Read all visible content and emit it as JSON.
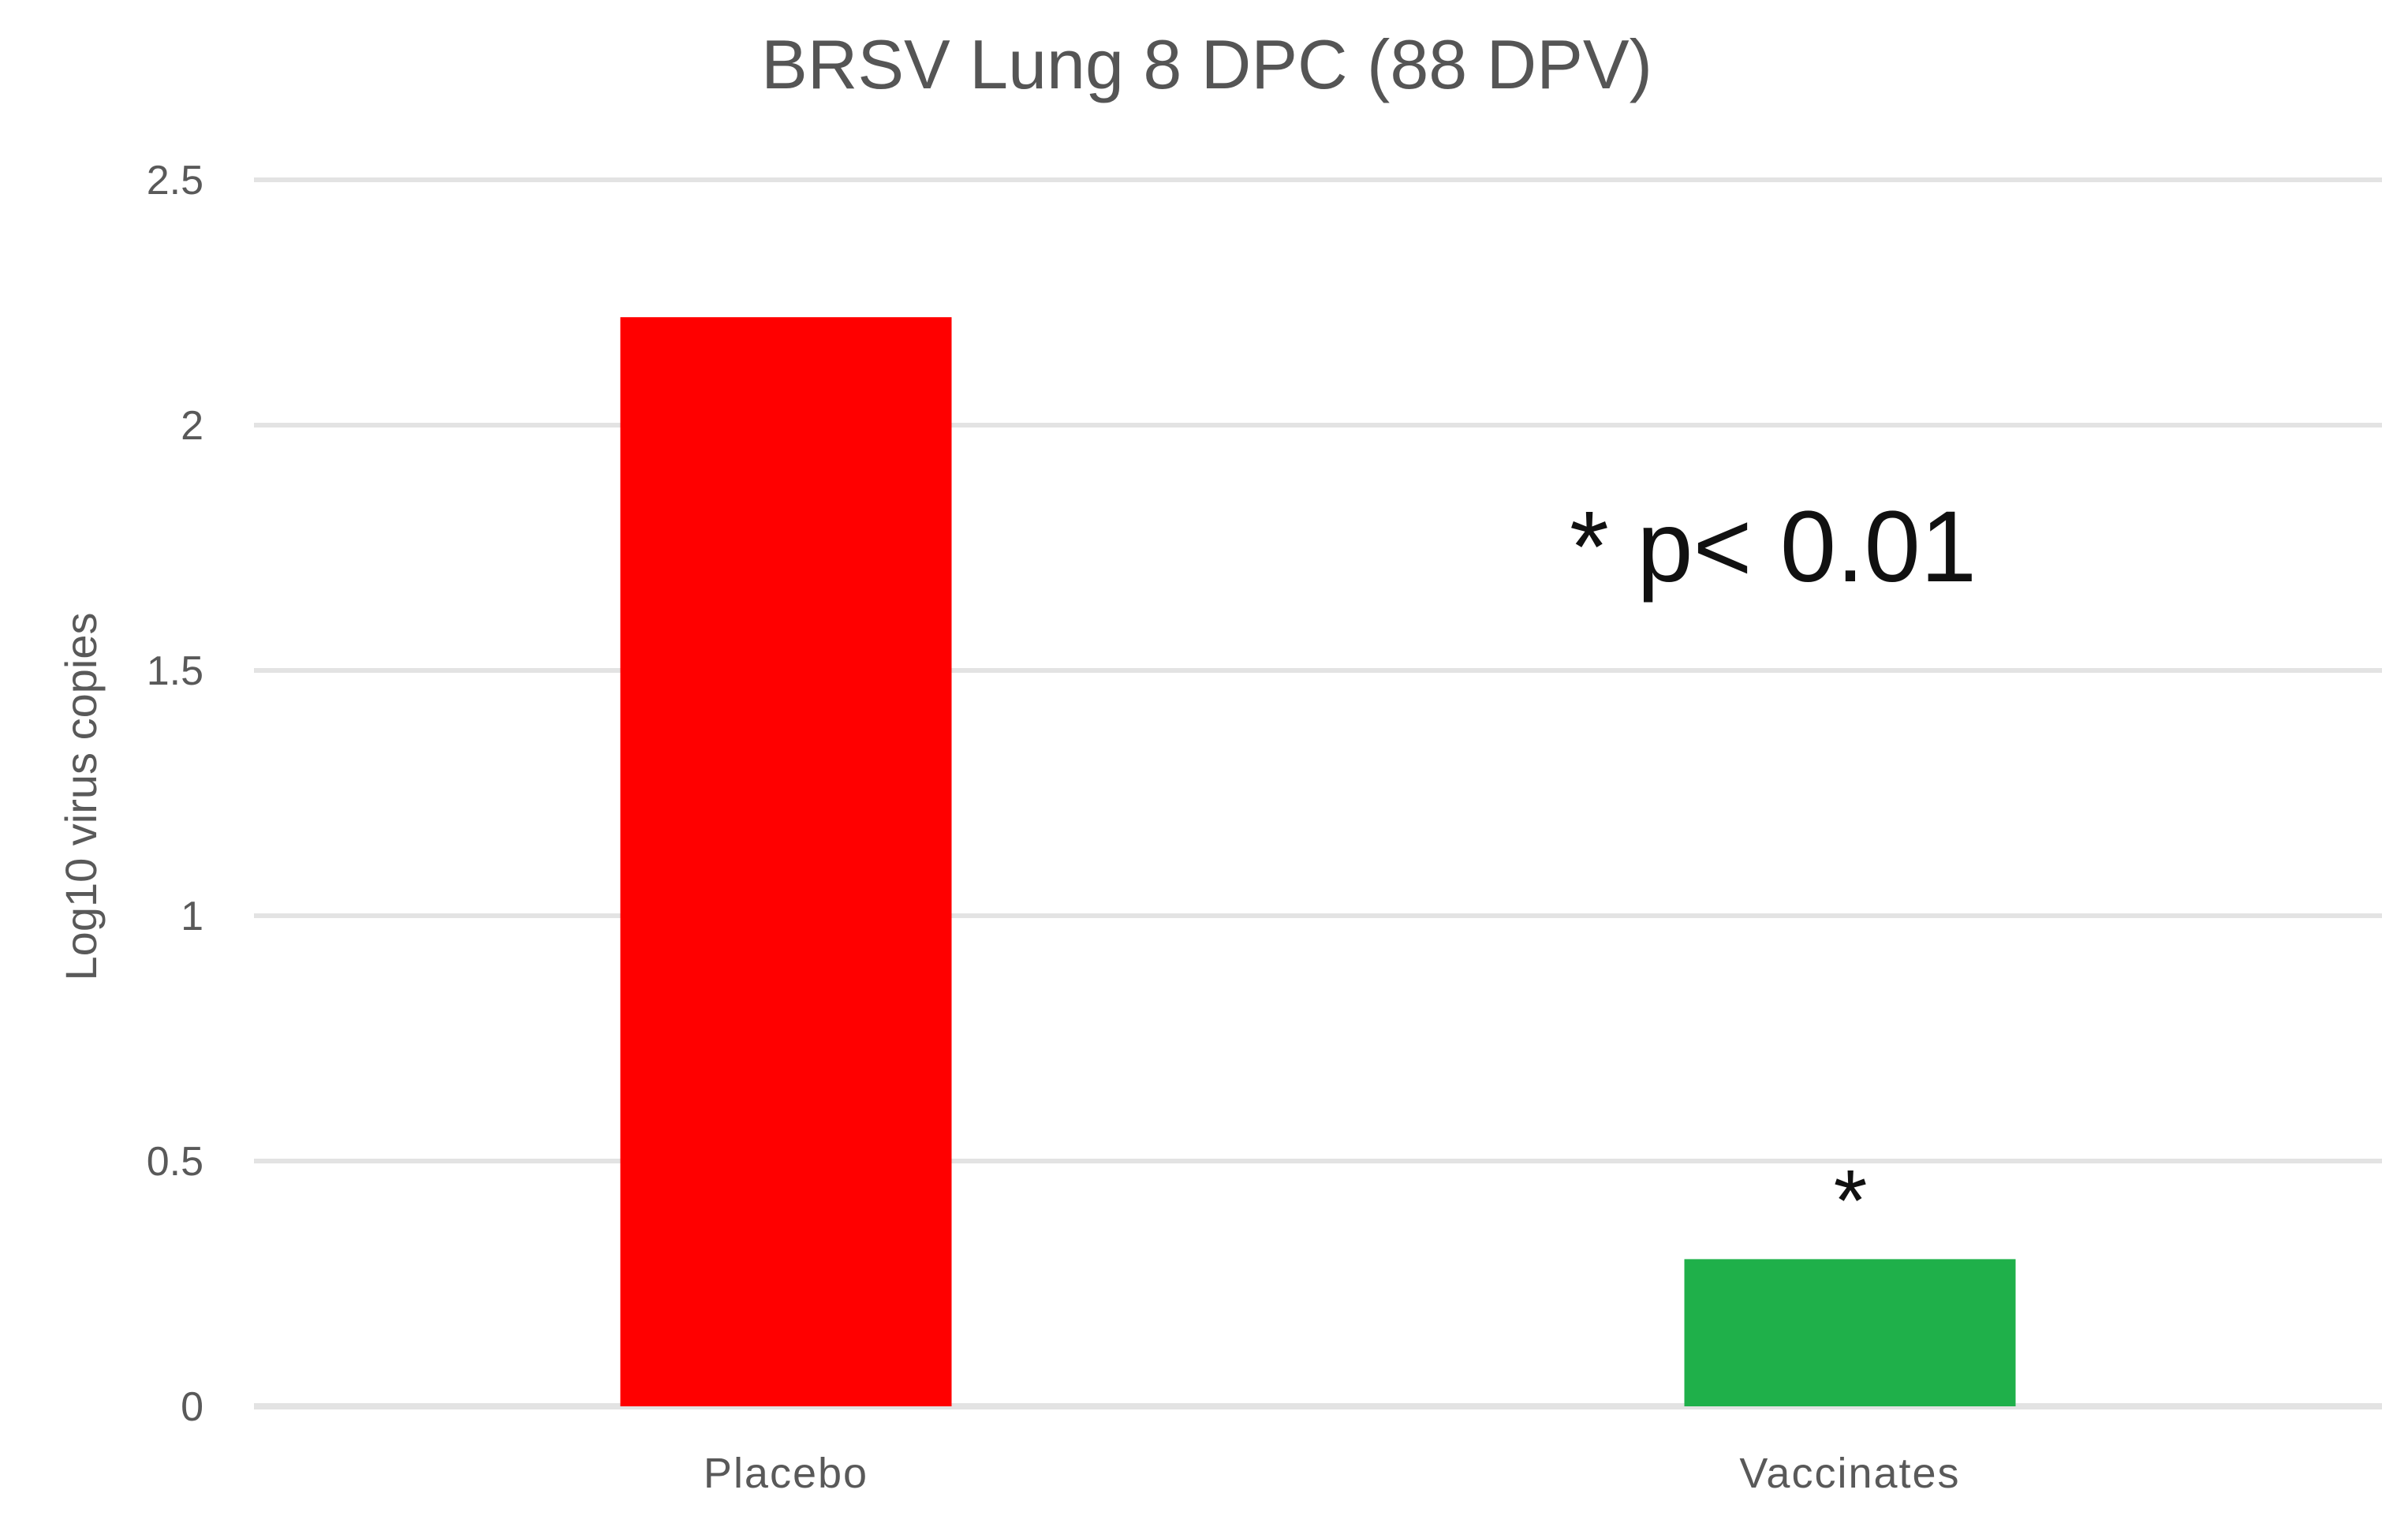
{
  "chart_data": {
    "type": "bar",
    "title": "BRSV Lung 8 DPC (88 DPV)",
    "xlabel": "",
    "ylabel": "Log10 virus copies",
    "categories": [
      "Placebo",
      "Vaccinates"
    ],
    "values": [
      2.22,
      0.3
    ],
    "bar_colors": [
      "#ff0000",
      "#1fb04a"
    ],
    "ylim": [
      0,
      2.5
    ],
    "yticks": [
      0,
      0.5,
      1,
      1.5,
      2,
      2.5
    ],
    "ytick_labels": [
      "0",
      "0.5",
      "1",
      "1.5",
      "2",
      "2.5"
    ],
    "grid": true,
    "legend": "none",
    "annotations": {
      "significance": "* p< 0.01",
      "bar_marker": "*"
    }
  }
}
